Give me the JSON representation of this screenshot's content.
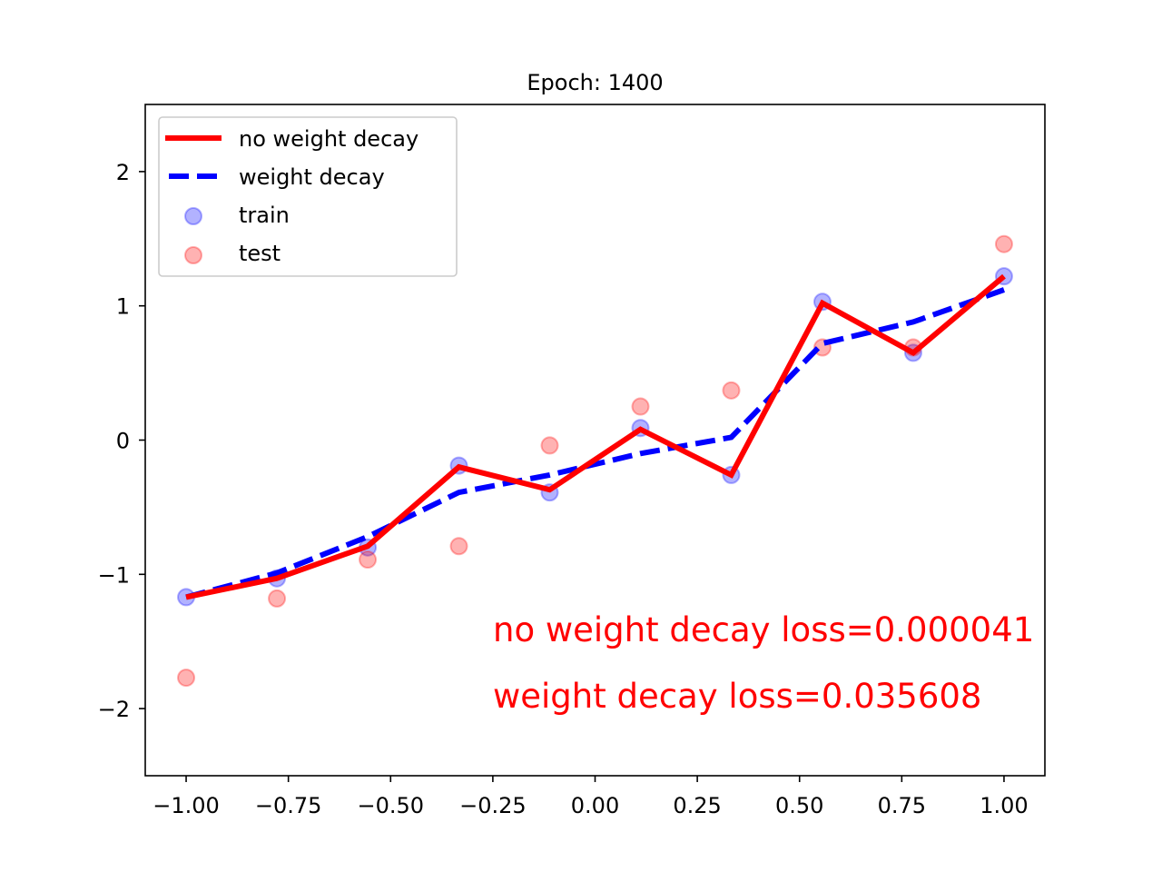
{
  "chart_data": {
    "type": "scatter",
    "title": "Epoch: 1400",
    "xlabel": "",
    "ylabel": "",
    "xlim": [
      -1.1,
      1.1
    ],
    "ylim": [
      -2.5,
      2.5
    ],
    "grid": false,
    "legend_position": "top-left",
    "xticks": [
      -1.0,
      -0.75,
      -0.5,
      -0.25,
      0.0,
      0.25,
      0.5,
      0.75,
      1.0
    ],
    "xtick_labels": [
      "−1.00",
      "−0.75",
      "−0.50",
      "−0.25",
      "0.00",
      "0.25",
      "0.50",
      "0.75",
      "1.00"
    ],
    "yticks": [
      -2,
      -1,
      0,
      1,
      2
    ],
    "ytick_labels": [
      "−2",
      "−1",
      "0",
      "1",
      "2"
    ],
    "series": [
      {
        "name": "no weight decay",
        "kind": "line",
        "style": "solid",
        "color": "#ff0000",
        "x": [
          -1.0,
          -0.778,
          -0.556,
          -0.333,
          -0.111,
          0.111,
          0.333,
          0.556,
          0.778,
          1.0
        ],
        "y": [
          -1.17,
          -1.03,
          -0.79,
          -0.2,
          -0.37,
          0.08,
          -0.26,
          1.02,
          0.65,
          1.22
        ]
      },
      {
        "name": "weight decay",
        "kind": "line",
        "style": "dashed",
        "color": "#0000ff",
        "x": [
          -1.0,
          -0.778,
          -0.556,
          -0.333,
          -0.111,
          0.111,
          0.333,
          0.556,
          0.778,
          1.0
        ],
        "y": [
          -1.17,
          -0.99,
          -0.72,
          -0.39,
          -0.26,
          -0.1,
          0.02,
          0.72,
          0.88,
          1.12
        ]
      },
      {
        "name": "train",
        "kind": "scatter",
        "color": "#0000ff",
        "x": [
          -1.0,
          -0.778,
          -0.556,
          -0.333,
          -0.111,
          0.111,
          0.333,
          0.556,
          0.778,
          1.0
        ],
        "y": [
          -1.17,
          -1.03,
          -0.8,
          -0.19,
          -0.39,
          0.09,
          -0.26,
          1.03,
          0.65,
          1.22
        ]
      },
      {
        "name": "test",
        "kind": "scatter",
        "color": "#ff0000",
        "x": [
          -1.0,
          -0.778,
          -0.556,
          -0.333,
          -0.111,
          0.111,
          0.333,
          0.556,
          0.778,
          1.0
        ],
        "y": [
          -1.77,
          -1.18,
          -0.89,
          -0.79,
          -0.04,
          0.25,
          0.37,
          0.69,
          0.69,
          1.46
        ]
      }
    ],
    "annotations": [
      {
        "text": "no weight decay loss=0.000041",
        "color": "#ff0000"
      },
      {
        "text": "weight decay loss=0.035608",
        "color": "#ff0000"
      }
    ]
  }
}
